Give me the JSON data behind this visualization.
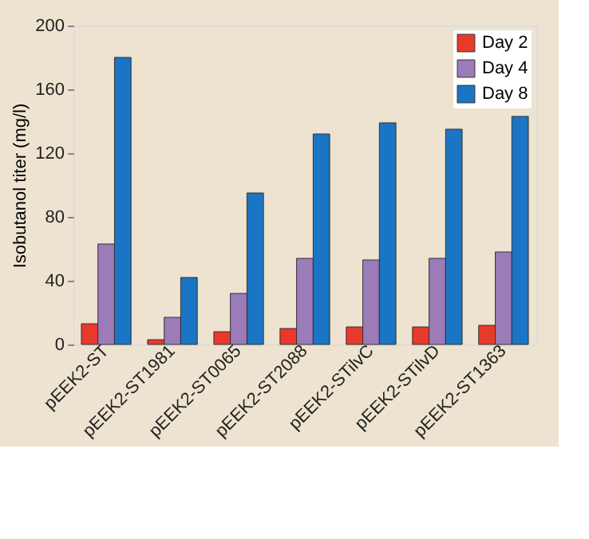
{
  "chart_data": {
    "type": "bar",
    "ylabel": "Isobutanol titer (mg/l)",
    "categories": [
      "pEEK2-ST",
      "pEEK2-ST1981",
      "pEEK2-ST0065",
      "pEEK2-ST2088",
      "pEEK2-STilvC",
      "pEEK2-STilvD",
      "pEEK2-ST1363"
    ],
    "series": [
      {
        "name": "Day 2",
        "color": "#e8392b",
        "values": [
          13,
          3,
          8,
          10,
          11,
          11,
          12
        ]
      },
      {
        "name": "Day 4",
        "color": "#9b7bb8",
        "values": [
          63,
          17,
          32,
          54,
          53,
          54,
          58
        ]
      },
      {
        "name": "Day 8",
        "color": "#1a75c4",
        "values": [
          180,
          42,
          95,
          132,
          139,
          135,
          143
        ]
      }
    ],
    "ylim": [
      0,
      200
    ],
    "yticks": [
      0,
      40,
      80,
      120,
      160,
      200
    ],
    "grid": false,
    "legend": "top right"
  }
}
